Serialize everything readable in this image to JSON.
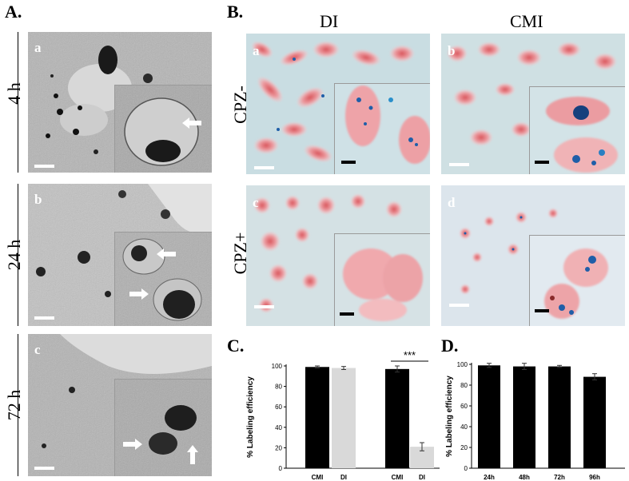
{
  "panels": {
    "A": {
      "letter": "A.",
      "rows": [
        {
          "time": "4 h",
          "sub": "a"
        },
        {
          "time": "24 h",
          "sub": "b"
        },
        {
          "time": "72 h",
          "sub": "c"
        }
      ]
    },
    "B": {
      "letter": "B.",
      "columns": [
        "DI",
        "CMI"
      ],
      "rows": [
        "CPZ-",
        "CPZ+"
      ],
      "subs": [
        "a",
        "b",
        "c",
        "d"
      ]
    },
    "C": {
      "letter": "C.",
      "significance": "***"
    },
    "D": {
      "letter": "D."
    }
  },
  "colors": {
    "em_gray": "#b8b8b8",
    "stain_bg": "#cfdde3",
    "cell_pink": "#e89a9f",
    "prussian_blue": "#1f5ea8",
    "bar_black": "#000000",
    "bar_gray": "#d9d9d9"
  },
  "chart_data": [
    {
      "type": "bar",
      "panel": "C",
      "categories": [
        "CMI",
        "DI",
        "CMI",
        "DI"
      ],
      "values": [
        99,
        98,
        97,
        21
      ],
      "errors": [
        1,
        1.5,
        3,
        4
      ],
      "bar_colors": [
        "#000000",
        "#d9d9d9",
        "#000000",
        "#d9d9d9"
      ],
      "ylabel": "% Labeling efficiency",
      "yticks": [
        0,
        20,
        40,
        60,
        80,
        100
      ],
      "ylim": [
        0,
        100
      ],
      "annotation": "***"
    },
    {
      "type": "bar",
      "panel": "D",
      "categories": [
        "24h",
        "48h",
        "72h",
        "96h"
      ],
      "values": [
        99,
        98,
        98,
        88
      ],
      "errors": [
        2,
        3,
        1,
        3
      ],
      "bar_colors": [
        "#000000",
        "#000000",
        "#000000",
        "#000000"
      ],
      "ylabel": "% Labeling efficiency",
      "yticks": [
        0,
        20,
        40,
        60,
        80,
        100
      ],
      "ylim": [
        0,
        100
      ]
    }
  ]
}
